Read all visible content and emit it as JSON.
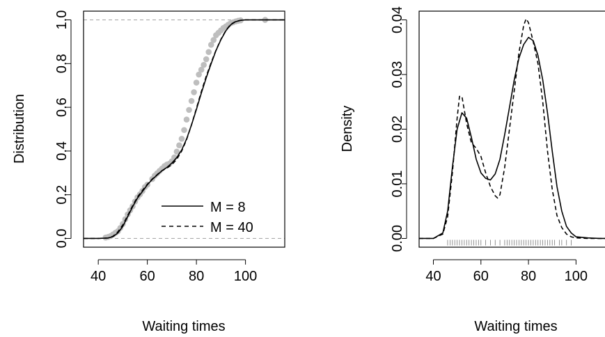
{
  "chart_data": [
    {
      "type": "line",
      "xlabel": "Waiting times",
      "ylabel": "Distribution",
      "xlim": [
        34,
        116
      ],
      "ylim": [
        -0.04,
        1.04
      ],
      "xticks": [
        40,
        60,
        80,
        100
      ],
      "yticks": [
        0.0,
        0.2,
        0.4,
        0.6,
        0.8,
        1.0
      ],
      "xtick_labels": [
        "40",
        "60",
        "80",
        "100"
      ],
      "ytick_labels": [
        "0.0",
        "0.2",
        "0.4",
        "0.6",
        "0.8",
        "1.0"
      ],
      "reference_lines": [
        0,
        1
      ],
      "legend": {
        "position": "bottom-right",
        "entries": [
          {
            "label": "M = 8",
            "style": "solid"
          },
          {
            "label": "M = 40",
            "style": "dashed"
          }
        ]
      },
      "points_color": "#bebebe",
      "points": {
        "x": [
          43,
          44,
          45,
          46,
          47,
          48,
          49,
          50,
          51,
          52,
          53,
          54,
          55,
          56,
          57,
          58,
          59,
          60,
          62,
          63,
          64,
          65,
          66,
          67,
          68,
          69,
          70,
          71,
          72,
          73,
          74,
          75,
          76,
          77,
          78,
          79,
          80,
          81,
          82,
          83,
          84,
          85,
          86,
          87,
          88,
          89,
          90,
          91,
          92,
          93,
          94,
          95,
          96,
          97,
          98,
          108
        ],
        "y": [
          0.004,
          0.007,
          0.011,
          0.018,
          0.026,
          0.033,
          0.048,
          0.066,
          0.088,
          0.11,
          0.129,
          0.147,
          0.169,
          0.188,
          0.202,
          0.217,
          0.235,
          0.246,
          0.272,
          0.287,
          0.298,
          0.309,
          0.32,
          0.331,
          0.338,
          0.342,
          0.353,
          0.371,
          0.397,
          0.426,
          0.456,
          0.496,
          0.544,
          0.588,
          0.629,
          0.669,
          0.713,
          0.75,
          0.772,
          0.794,
          0.82,
          0.853,
          0.886,
          0.908,
          0.93,
          0.941,
          0.952,
          0.963,
          0.97,
          0.978,
          0.985,
          0.989,
          0.993,
          0.996,
          0.998,
          1.0
        ]
      },
      "series": [
        {
          "name": "M = 8",
          "style": "solid",
          "x": [
            34,
            40,
            44,
            46,
            48,
            50,
            52,
            54,
            56,
            58,
            60,
            62,
            64,
            66,
            68,
            70,
            72,
            74,
            76,
            78,
            80,
            82,
            84,
            86,
            88,
            90,
            92,
            94,
            96,
            98,
            100,
            105,
            110,
            116
          ],
          "y": [
            0.0,
            0.0,
            0.002,
            0.008,
            0.025,
            0.055,
            0.1,
            0.145,
            0.185,
            0.215,
            0.245,
            0.27,
            0.29,
            0.31,
            0.325,
            0.345,
            0.37,
            0.405,
            0.455,
            0.52,
            0.59,
            0.665,
            0.735,
            0.8,
            0.86,
            0.91,
            0.95,
            0.978,
            0.992,
            0.998,
            1.0,
            1.0,
            1.0,
            1.0
          ]
        },
        {
          "name": "M = 40",
          "style": "dashed",
          "x": [
            34,
            40,
            44,
            46,
            48,
            50,
            52,
            54,
            56,
            58,
            60,
            62,
            64,
            66,
            68,
            70,
            72,
            74,
            76,
            78,
            80,
            82,
            84,
            86,
            88,
            90,
            92,
            94,
            96,
            98,
            100,
            105,
            110,
            116
          ],
          "y": [
            0.0,
            0.0,
            0.002,
            0.01,
            0.03,
            0.062,
            0.105,
            0.15,
            0.19,
            0.22,
            0.248,
            0.272,
            0.292,
            0.31,
            0.322,
            0.338,
            0.362,
            0.4,
            0.452,
            0.52,
            0.595,
            0.672,
            0.742,
            0.805,
            0.862,
            0.912,
            0.952,
            0.98,
            0.993,
            0.998,
            1.0,
            1.0,
            1.0,
            1.0
          ]
        }
      ]
    },
    {
      "type": "line",
      "xlabel": "Waiting times",
      "ylabel": "Density",
      "xlim": [
        34,
        116
      ],
      "ylim": [
        -0.0016,
        0.0416
      ],
      "xticks": [
        40,
        60,
        80,
        100
      ],
      "yticks": [
        0.0,
        0.01,
        0.02,
        0.03,
        0.04
      ],
      "xtick_labels": [
        "40",
        "60",
        "80",
        "100"
      ],
      "ytick_labels": [
        "0.00",
        "0.01",
        "0.02",
        "0.03",
        "0.04"
      ],
      "rug": [
        46,
        47,
        48,
        49,
        50,
        51,
        52,
        53,
        54,
        55,
        56,
        57,
        58,
        59,
        60,
        62,
        64,
        66,
        68,
        70,
        71,
        72,
        73,
        74,
        75,
        76,
        77,
        78,
        79,
        80,
        81,
        82,
        83,
        84,
        85,
        86,
        87,
        88,
        89,
        90,
        91,
        93,
        94,
        96,
        98
      ],
      "series": [
        {
          "name": "M = 8",
          "style": "solid",
          "x": [
            34,
            40,
            44,
            46,
            48,
            50,
            52,
            54,
            56,
            58,
            60,
            62,
            64,
            66,
            68,
            70,
            72,
            74,
            76,
            78,
            80,
            82,
            84,
            86,
            88,
            90,
            92,
            94,
            96,
            98,
            100,
            105,
            110,
            116
          ],
          "y": [
            0.0,
            0.0,
            0.001,
            0.005,
            0.013,
            0.02,
            0.023,
            0.022,
            0.0185,
            0.0145,
            0.012,
            0.011,
            0.0107,
            0.0118,
            0.0145,
            0.019,
            0.024,
            0.029,
            0.033,
            0.0355,
            0.0368,
            0.0362,
            0.0335,
            0.029,
            0.023,
            0.016,
            0.0095,
            0.005,
            0.0022,
            0.001,
            0.0003,
            0.0001,
            0.0,
            0.0
          ]
        },
        {
          "name": "M = 40",
          "style": "dashed",
          "x": [
            34,
            40,
            44,
            46,
            48,
            50,
            51,
            52,
            54,
            56,
            58,
            60,
            62,
            64,
            66,
            67,
            68,
            70,
            72,
            74,
            76,
            78,
            79,
            80,
            82,
            84,
            86,
            88,
            90,
            92,
            94,
            96,
            98,
            100,
            105,
            110,
            116
          ],
          "y": [
            0.0,
            0.0,
            0.0008,
            0.004,
            0.012,
            0.022,
            0.026,
            0.026,
            0.021,
            0.0175,
            0.0165,
            0.015,
            0.012,
            0.0095,
            0.0078,
            0.0074,
            0.008,
            0.013,
            0.02,
            0.027,
            0.034,
            0.039,
            0.0402,
            0.0395,
            0.036,
            0.032,
            0.025,
            0.016,
            0.009,
            0.0042,
            0.002,
            0.0008,
            0.0003,
            0.0001,
            0.0,
            0.0,
            0.0
          ]
        }
      ]
    }
  ]
}
